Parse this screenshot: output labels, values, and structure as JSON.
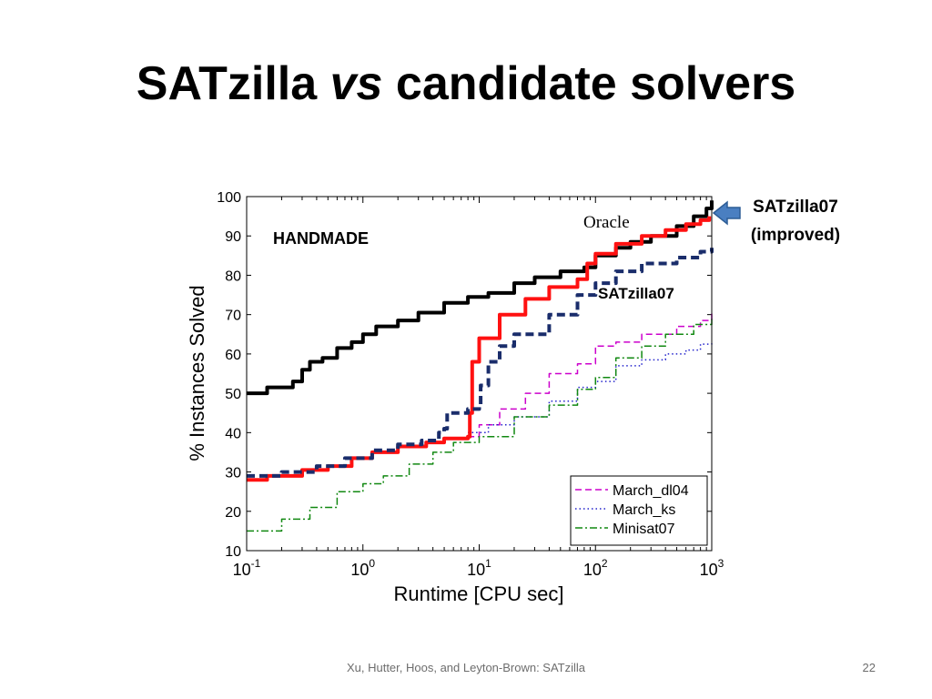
{
  "slide": {
    "title_part1": "SATzilla",
    "title_part2": "vs",
    "title_part3": "candidate solvers",
    "footer": "Xu, Hutter, Hoos, and Leyton-Brown: SATzilla",
    "page_number": "22"
  },
  "chart_data": {
    "type": "line",
    "xscale": "log",
    "xlim": [
      0.1,
      1000
    ],
    "ylim": [
      10,
      100
    ],
    "xlabel": "Runtime [CPU sec]",
    "ylabel": "% Instances Solved",
    "x_ticks": [
      {
        "value": 0.1,
        "base": "10",
        "exp": "-1"
      },
      {
        "value": 1,
        "base": "10",
        "exp": "0"
      },
      {
        "value": 10,
        "base": "10",
        "exp": "1"
      },
      {
        "value": 100,
        "base": "10",
        "exp": "2"
      },
      {
        "value": 1000,
        "base": "10",
        "exp": "3"
      }
    ],
    "y_ticks": [
      "10",
      "20",
      "30",
      "40",
      "50",
      "60",
      "70",
      "80",
      "90",
      "100"
    ],
    "legend_position": "bottom-right",
    "annotations": {
      "dataset": "HANDMADE",
      "oracle": "Oracle",
      "satzilla07": "SATzilla07",
      "improved_line1": "SATzilla07",
      "improved_line2": "(improved)"
    },
    "series": [
      {
        "name": "Oracle",
        "color": "#000000",
        "style": "solid-thick",
        "in_legend": false,
        "points": [
          [
            0.1,
            50
          ],
          [
            0.15,
            51.5
          ],
          [
            0.25,
            53
          ],
          [
            0.3,
            56
          ],
          [
            0.35,
            58
          ],
          [
            0.45,
            59
          ],
          [
            0.6,
            61.5
          ],
          [
            0.8,
            63
          ],
          [
            1.0,
            65
          ],
          [
            1.3,
            67
          ],
          [
            2,
            68.5
          ],
          [
            3,
            70.5
          ],
          [
            5,
            73
          ],
          [
            8,
            74.5
          ],
          [
            12,
            75.5
          ],
          [
            20,
            78
          ],
          [
            30,
            79.5
          ],
          [
            50,
            81
          ],
          [
            80,
            82
          ],
          [
            100,
            85
          ],
          [
            150,
            87
          ],
          [
            200,
            88.5
          ],
          [
            300,
            90
          ],
          [
            500,
            92.5
          ],
          [
            700,
            95
          ],
          [
            900,
            97
          ],
          [
            1000,
            99
          ]
        ]
      },
      {
        "name": "SATzilla07 (improved)",
        "color": "#ff1111",
        "style": "solid-thick",
        "in_legend": false,
        "points": [
          [
            0.1,
            28
          ],
          [
            0.15,
            29
          ],
          [
            0.3,
            30.5
          ],
          [
            0.5,
            31.5
          ],
          [
            0.8,
            33.5
          ],
          [
            1.2,
            35
          ],
          [
            2,
            36.5
          ],
          [
            3.5,
            37.5
          ],
          [
            5,
            38.5
          ],
          [
            8,
            39
          ],
          [
            8.3,
            39
          ],
          [
            8.3,
            45
          ],
          [
            8.7,
            58
          ],
          [
            10,
            64
          ],
          [
            15,
            70
          ],
          [
            25,
            74
          ],
          [
            40,
            77
          ],
          [
            70,
            79
          ],
          [
            85,
            83
          ],
          [
            100,
            85.5
          ],
          [
            150,
            88
          ],
          [
            250,
            90
          ],
          [
            400,
            91.5
          ],
          [
            600,
            93
          ],
          [
            800,
            94
          ],
          [
            950,
            95
          ]
        ]
      },
      {
        "name": "SATzilla07",
        "color": "#1a2d6b",
        "style": "dashed-thick",
        "in_legend": false,
        "points": [
          [
            0.1,
            29
          ],
          [
            0.2,
            30
          ],
          [
            0.4,
            31.5
          ],
          [
            0.7,
            33.5
          ],
          [
            1.2,
            35.5
          ],
          [
            2,
            37
          ],
          [
            3.2,
            38
          ],
          [
            4.5,
            40
          ],
          [
            5,
            41
          ],
          [
            5.3,
            45
          ],
          [
            8,
            46
          ],
          [
            10,
            47
          ],
          [
            10.3,
            52
          ],
          [
            12,
            58
          ],
          [
            15,
            62
          ],
          [
            20,
            65
          ],
          [
            40,
            70
          ],
          [
            70,
            75
          ],
          [
            100,
            78
          ],
          [
            150,
            81
          ],
          [
            250,
            83
          ],
          [
            500,
            84.5
          ],
          [
            800,
            86
          ],
          [
            1000,
            87
          ]
        ]
      },
      {
        "name": "March_dl04",
        "color": "#cc00cc",
        "style": "dashed",
        "in_legend": true,
        "points": [
          [
            8,
            39
          ],
          [
            10,
            42
          ],
          [
            15,
            46
          ],
          [
            25,
            50
          ],
          [
            40,
            55
          ],
          [
            70,
            57.5
          ],
          [
            100,
            62
          ],
          [
            150,
            63
          ],
          [
            250,
            65
          ],
          [
            500,
            67
          ],
          [
            800,
            68.5
          ],
          [
            1000,
            71
          ]
        ]
      },
      {
        "name": "March_ks",
        "color": "#2222cc",
        "style": "dotted",
        "in_legend": true,
        "points": [
          [
            8,
            40
          ],
          [
            12,
            42
          ],
          [
            20,
            44
          ],
          [
            40,
            48
          ],
          [
            70,
            51.5
          ],
          [
            100,
            53
          ],
          [
            150,
            57
          ],
          [
            250,
            58.5
          ],
          [
            400,
            60
          ],
          [
            600,
            61
          ],
          [
            800,
            62.5
          ],
          [
            1000,
            63
          ]
        ]
      },
      {
        "name": "Minisat07",
        "color": "#118811",
        "style": "dashdot",
        "in_legend": true,
        "points": [
          [
            0.1,
            15
          ],
          [
            0.2,
            18
          ],
          [
            0.35,
            21
          ],
          [
            0.6,
            25
          ],
          [
            1.0,
            27
          ],
          [
            1.5,
            29
          ],
          [
            2.5,
            32
          ],
          [
            4,
            35
          ],
          [
            6,
            37.5
          ],
          [
            10,
            39
          ],
          [
            20,
            44
          ],
          [
            40,
            47
          ],
          [
            70,
            51
          ],
          [
            100,
            54
          ],
          [
            150,
            59
          ],
          [
            250,
            62
          ],
          [
            400,
            65
          ],
          [
            700,
            67.5
          ],
          [
            1000,
            69.5
          ]
        ]
      }
    ]
  }
}
